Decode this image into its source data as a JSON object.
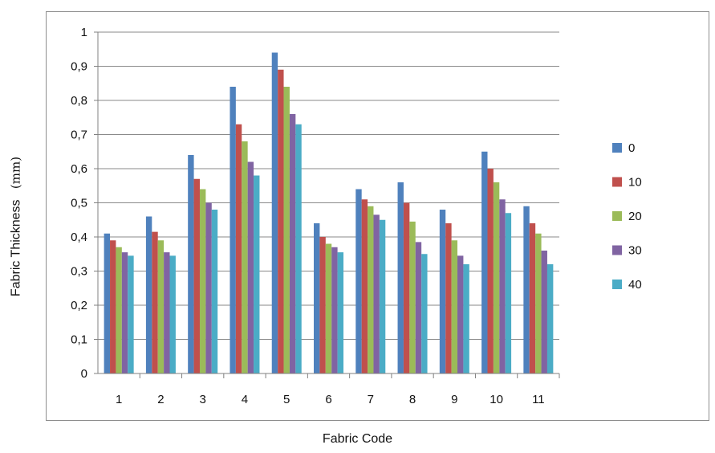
{
  "chart_data": {
    "type": "bar",
    "xlabel": "Fabric Code",
    "ylabel": "Fabric Thickness",
    "ylabel_unit": "(mm)",
    "ylim": [
      0,
      1
    ],
    "yticks": [
      "0",
      "0,1",
      "0,2",
      "0,3",
      "0,4",
      "0,5",
      "0,6",
      "0,7",
      "0,8",
      "0,9",
      "1"
    ],
    "grid": true,
    "legend_position": "right",
    "categories": [
      "1",
      "2",
      "3",
      "4",
      "5",
      "6",
      "7",
      "8",
      "9",
      "10",
      "11"
    ],
    "series": [
      {
        "name": "0",
        "color": "#4f81bd",
        "values": [
          0.41,
          0.46,
          0.64,
          0.84,
          0.94,
          0.44,
          0.54,
          0.56,
          0.48,
          0.65,
          0.49
        ]
      },
      {
        "name": "10",
        "color": "#c0504d",
        "values": [
          0.39,
          0.415,
          0.57,
          0.73,
          0.89,
          0.4,
          0.51,
          0.5,
          0.44,
          0.6,
          0.44
        ]
      },
      {
        "name": "20",
        "color": "#9bbb59",
        "values": [
          0.37,
          0.39,
          0.54,
          0.68,
          0.84,
          0.38,
          0.49,
          0.445,
          0.39,
          0.56,
          0.41
        ]
      },
      {
        "name": "30",
        "color": "#8064a2",
        "values": [
          0.355,
          0.355,
          0.5,
          0.62,
          0.76,
          0.37,
          0.465,
          0.385,
          0.345,
          0.51,
          0.36
        ]
      },
      {
        "name": "40",
        "color": "#4bacc6",
        "values": [
          0.345,
          0.345,
          0.48,
          0.58,
          0.73,
          0.355,
          0.45,
          0.35,
          0.32,
          0.47,
          0.32
        ]
      }
    ]
  }
}
